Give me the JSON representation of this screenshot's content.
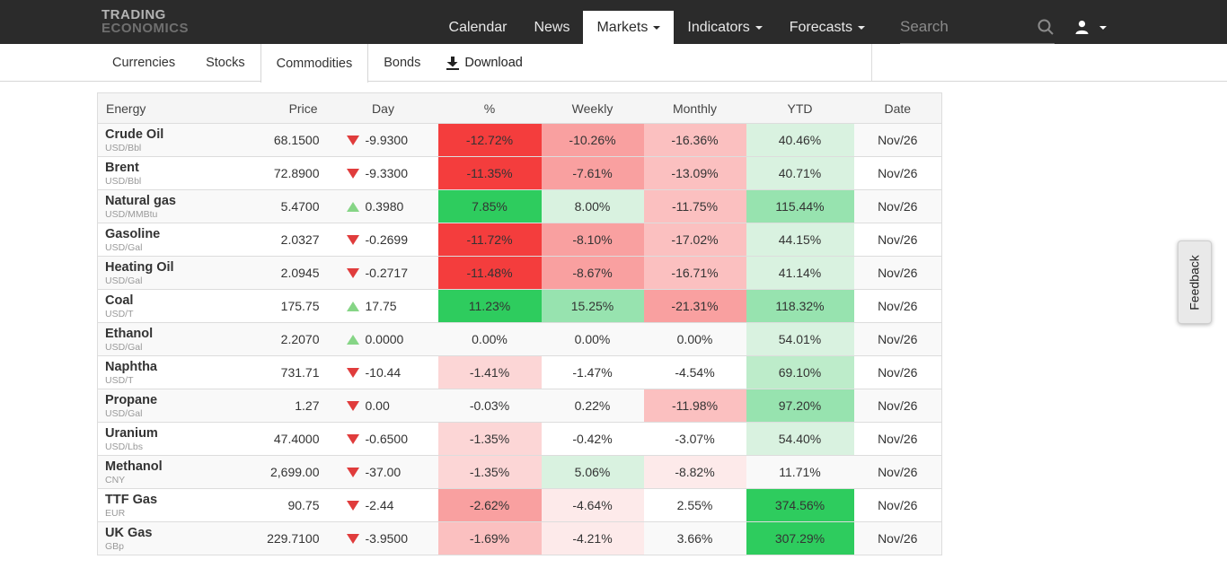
{
  "navbar": {
    "logo_line1": "TRADING",
    "logo_line2": "ECONOMICS",
    "items": [
      {
        "label": "Calendar",
        "active": false,
        "caret": false
      },
      {
        "label": "News",
        "active": false,
        "caret": false
      },
      {
        "label": "Markets",
        "active": true,
        "caret": true
      },
      {
        "label": "Indicators",
        "active": false,
        "caret": true
      },
      {
        "label": "Forecasts",
        "active": false,
        "caret": true
      }
    ],
    "search_placeholder": "Search"
  },
  "subnav": {
    "tabs": [
      {
        "label": "Currencies",
        "active": false
      },
      {
        "label": "Stocks",
        "active": false
      },
      {
        "label": "Commodities",
        "active": true
      },
      {
        "label": "Bonds",
        "active": false
      }
    ],
    "download_label": "Download"
  },
  "feedback_label": "Feedback",
  "colors": {
    "navbar_bg": "#2b2b2b",
    "down_triangle": "#e03c3c",
    "up_triangle": "#86d586",
    "heatmap": {
      "R4": "#f43d3d",
      "R3": "#f9a0a0",
      "R2": "#fbc0c0",
      "R1": "#fcd6d6",
      "R0": "#fdeaea",
      "G4": "#2ecc5e",
      "G3": "#97e3af",
      "G2": "#bdecca",
      "G1": "#d9f2e0",
      "none": ""
    }
  },
  "table": {
    "columns": [
      "Energy",
      "Price",
      "Day",
      "%",
      "Weekly",
      "Monthly",
      "YTD",
      "Date"
    ],
    "rows": [
      {
        "name": "Crude Oil",
        "unit": "USD/Bbl",
        "price": "68.1500",
        "dir": "down",
        "day": "-9.9300",
        "pct": "-12.72%",
        "pct_c": "R4",
        "weekly": "-10.26%",
        "weekly_c": "R3",
        "monthly": "-16.36%",
        "monthly_c": "R2",
        "ytd": "40.46%",
        "ytd_c": "G1",
        "date": "Nov/26"
      },
      {
        "name": "Brent",
        "unit": "USD/Bbl",
        "price": "72.8900",
        "dir": "down",
        "day": "-9.3300",
        "pct": "-11.35%",
        "pct_c": "R4",
        "weekly": "-7.61%",
        "weekly_c": "R3",
        "monthly": "-13.09%",
        "monthly_c": "R2",
        "ytd": "40.71%",
        "ytd_c": "G1",
        "date": "Nov/26"
      },
      {
        "name": "Natural gas",
        "unit": "USD/MMBtu",
        "price": "5.4700",
        "dir": "up",
        "day": "0.3980",
        "pct": "7.85%",
        "pct_c": "G4",
        "weekly": "8.00%",
        "weekly_c": "G1",
        "monthly": "-11.75%",
        "monthly_c": "R2",
        "ytd": "115.44%",
        "ytd_c": "G3",
        "date": "Nov/26"
      },
      {
        "name": "Gasoline",
        "unit": "USD/Gal",
        "price": "2.0327",
        "dir": "down",
        "day": "-0.2699",
        "pct": "-11.72%",
        "pct_c": "R4",
        "weekly": "-8.10%",
        "weekly_c": "R3",
        "monthly": "-17.02%",
        "monthly_c": "R2",
        "ytd": "44.15%",
        "ytd_c": "G1",
        "date": "Nov/26"
      },
      {
        "name": "Heating Oil",
        "unit": "USD/Gal",
        "price": "2.0945",
        "dir": "down",
        "day": "-0.2717",
        "pct": "-11.48%",
        "pct_c": "R4",
        "weekly": "-8.67%",
        "weekly_c": "R3",
        "monthly": "-16.71%",
        "monthly_c": "R2",
        "ytd": "41.14%",
        "ytd_c": "G1",
        "date": "Nov/26"
      },
      {
        "name": "Coal",
        "unit": "USD/T",
        "price": "175.75",
        "dir": "up",
        "day": "17.75",
        "pct": "11.23%",
        "pct_c": "G4",
        "weekly": "15.25%",
        "weekly_c": "G3",
        "monthly": "-21.31%",
        "monthly_c": "R3",
        "ytd": "118.32%",
        "ytd_c": "G3",
        "date": "Nov/26"
      },
      {
        "name": "Ethanol",
        "unit": "USD/Gal",
        "price": "2.2070",
        "dir": "up",
        "day": "0.0000",
        "pct": "0.00%",
        "pct_c": "none",
        "weekly": "0.00%",
        "weekly_c": "none",
        "monthly": "0.00%",
        "monthly_c": "none",
        "ytd": "54.01%",
        "ytd_c": "G1",
        "date": "Nov/26"
      },
      {
        "name": "Naphtha",
        "unit": "USD/T",
        "price": "731.71",
        "dir": "down",
        "day": "-10.44",
        "pct": "-1.41%",
        "pct_c": "R1",
        "weekly": "-1.47%",
        "weekly_c": "none",
        "monthly": "-4.54%",
        "monthly_c": "none",
        "ytd": "69.10%",
        "ytd_c": "G2",
        "date": "Nov/26"
      },
      {
        "name": "Propane",
        "unit": "USD/Gal",
        "price": "1.27",
        "dir": "down",
        "day": "0.00",
        "pct": "-0.03%",
        "pct_c": "none",
        "weekly": "0.22%",
        "weekly_c": "none",
        "monthly": "-11.98%",
        "monthly_c": "R2",
        "ytd": "97.20%",
        "ytd_c": "G3",
        "date": "Nov/26"
      },
      {
        "name": "Uranium",
        "unit": "USD/Lbs",
        "price": "47.4000",
        "dir": "down",
        "day": "-0.6500",
        "pct": "-1.35%",
        "pct_c": "R1",
        "weekly": "-0.42%",
        "weekly_c": "none",
        "monthly": "-3.07%",
        "monthly_c": "none",
        "ytd": "54.40%",
        "ytd_c": "G1",
        "date": "Nov/26"
      },
      {
        "name": "Methanol",
        "unit": "CNY",
        "price": "2,699.00",
        "dir": "down",
        "day": "-37.00",
        "pct": "-1.35%",
        "pct_c": "R1",
        "weekly": "5.06%",
        "weekly_c": "G1",
        "monthly": "-8.82%",
        "monthly_c": "R0",
        "ytd": "11.71%",
        "ytd_c": "none",
        "date": "Nov/26"
      },
      {
        "name": "TTF Gas",
        "unit": "EUR",
        "price": "90.75",
        "dir": "down",
        "day": "-2.44",
        "pct": "-2.62%",
        "pct_c": "R3",
        "weekly": "-4.64%",
        "weekly_c": "R0",
        "monthly": "2.55%",
        "monthly_c": "none",
        "ytd": "374.56%",
        "ytd_c": "G4",
        "date": "Nov/26"
      },
      {
        "name": "UK Gas",
        "unit": "GBp",
        "price": "229.7100",
        "dir": "down",
        "day": "-3.9500",
        "pct": "-1.69%",
        "pct_c": "R2",
        "weekly": "-4.21%",
        "weekly_c": "R0",
        "monthly": "3.66%",
        "monthly_c": "none",
        "ytd": "307.29%",
        "ytd_c": "G4",
        "date": "Nov/26"
      }
    ]
  }
}
